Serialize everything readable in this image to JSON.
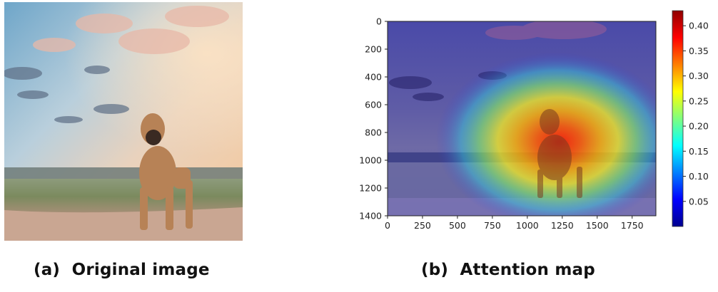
{
  "panel_a": {
    "caption_label": "(a)",
    "caption_text": "Original image"
  },
  "panel_b": {
    "caption_label": "(b)",
    "caption_text": "Attention map"
  },
  "chart_data": {
    "type": "heatmap",
    "title": "",
    "xlabel": "",
    "ylabel": "",
    "xlim": [
      0,
      1920
    ],
    "ylim": [
      1400,
      0
    ],
    "x_ticks": [
      0,
      250,
      500,
      750,
      1000,
      1250,
      1500,
      1750
    ],
    "y_ticks": [
      0,
      200,
      400,
      600,
      800,
      1000,
      1200,
      1400
    ],
    "colorbar": {
      "colormap": "jet",
      "range": [
        0.0,
        0.43
      ],
      "ticks": [
        "0.05",
        "0.10",
        "0.15",
        "0.20",
        "0.25",
        "0.30",
        "0.35",
        "0.40"
      ]
    },
    "attention_peak": {
      "x": 1250,
      "y": 870,
      "value": 0.43
    }
  }
}
